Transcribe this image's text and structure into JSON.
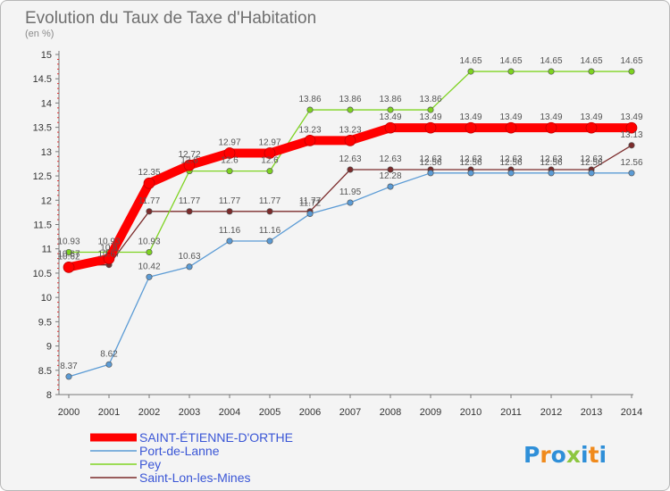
{
  "title": "Evolution du Taux de Taxe d'Habitation",
  "subtitle": "(en %)",
  "brand": "Proxiti",
  "chart_data": {
    "type": "line",
    "title": "Evolution du Taux de Taxe d'Habitation",
    "subtitle": "(en %)",
    "x": [
      "2000",
      "2001",
      "2002",
      "2003",
      "2004",
      "2005",
      "2006",
      "2007",
      "2008",
      "2009",
      "2010",
      "2011",
      "2012",
      "2013",
      "2014"
    ],
    "y_ticks": [
      "8",
      "8.5",
      "9",
      "9.5",
      "10",
      "10.5",
      "11",
      "11.5",
      "12",
      "12.5",
      "13",
      "13.5",
      "14",
      "14.5",
      "15"
    ],
    "ylim": [
      8,
      15
    ],
    "grid": false,
    "legend_position": "bottom",
    "series": [
      {
        "name": "SAINT-ÉTIENNE-D'ORTHE",
        "color": "#ff0000",
        "values": [
          10.62,
          10.8,
          12.35,
          12.72,
          12.97,
          12.97,
          13.23,
          13.23,
          13.49,
          13.49,
          13.49,
          13.49,
          13.49,
          13.49,
          13.49
        ],
        "labels": [
          "10.62",
          "10.8",
          "12.35",
          "12.72",
          "12.97",
          "12.97",
          "13.23",
          "13.23",
          "13.49",
          "13.49",
          "13.49",
          "13.49",
          "13.49",
          "13.49",
          "13.49"
        ]
      },
      {
        "name": "Port-de-Lanne",
        "color": "#5b9bd5",
        "values": [
          8.37,
          8.62,
          10.42,
          10.63,
          11.16,
          11.16,
          11.72,
          11.95,
          12.28,
          12.56,
          12.56,
          12.56,
          12.56,
          12.56,
          12.56
        ],
        "labels": [
          "8.37",
          "8.62",
          "10.42",
          "10.63",
          "11.16",
          "11.16",
          "11.72",
          "11.95",
          "12.28",
          "12.56",
          "12.56",
          "12.56",
          "12.56",
          "12.56",
          "12.56"
        ]
      },
      {
        "name": "Pey",
        "color": "#7ed321",
        "values": [
          10.93,
          10.93,
          10.93,
          12.6,
          12.6,
          12.6,
          13.86,
          13.86,
          13.86,
          13.86,
          14.65,
          14.65,
          14.65,
          14.65,
          14.65
        ],
        "labels": [
          "10.93",
          "10.93",
          "10.93",
          "12.6",
          "12.6",
          "12.6",
          "13.86",
          "13.86",
          "13.86",
          "13.86",
          "14.65",
          "14.65",
          "14.65",
          "14.65",
          "14.65"
        ]
      },
      {
        "name": "Saint-Lon-les-Mines",
        "color": "#7b2b2b",
        "values": [
          10.67,
          10.67,
          11.77,
          11.77,
          11.77,
          11.77,
          11.77,
          12.63,
          12.63,
          12.63,
          12.63,
          12.63,
          12.63,
          12.63,
          13.13
        ],
        "labels": [
          "10.67",
          "10.67",
          "11.77",
          "11.77",
          "11.77",
          "11.77",
          "11.77",
          "12.63",
          "12.63",
          "12.63",
          "12.63",
          "12.63",
          "12.63",
          "12.63",
          "13.13"
        ]
      }
    ]
  }
}
